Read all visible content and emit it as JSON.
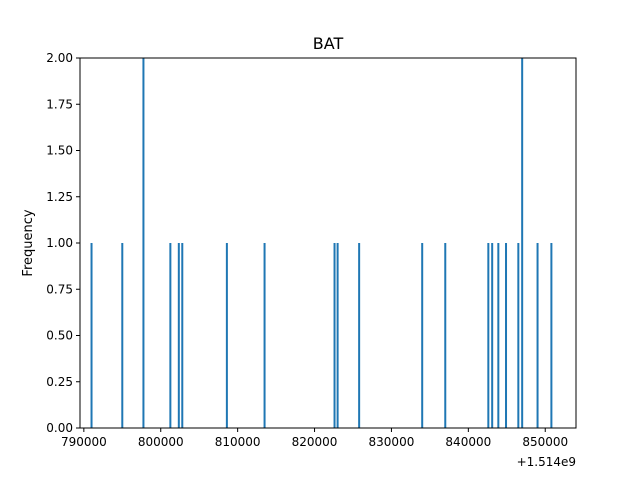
{
  "chart_data": {
    "type": "bar",
    "title": "BAT",
    "xlabel": "",
    "ylabel": "Frequency",
    "x_offset_label": "+1.514e9",
    "xlim": [
      789500,
      854000
    ],
    "ylim": [
      0,
      2.0
    ],
    "x_ticks": [
      790000,
      800000,
      810000,
      820000,
      830000,
      840000,
      850000
    ],
    "y_ticks": [
      0.0,
      0.25,
      0.5,
      0.75,
      1.0,
      1.25,
      1.5,
      1.75,
      2.0
    ],
    "bar_color": "#1f77b4",
    "grid": false,
    "bars": [
      {
        "x": 791000,
        "y": 1
      },
      {
        "x": 795000,
        "y": 1
      },
      {
        "x": 797750,
        "y": 2
      },
      {
        "x": 801250,
        "y": 1
      },
      {
        "x": 802350,
        "y": 1
      },
      {
        "x": 802800,
        "y": 1
      },
      {
        "x": 808600,
        "y": 1
      },
      {
        "x": 813500,
        "y": 1
      },
      {
        "x": 822600,
        "y": 1
      },
      {
        "x": 823000,
        "y": 1
      },
      {
        "x": 825800,
        "y": 1
      },
      {
        "x": 834000,
        "y": 1
      },
      {
        "x": 837000,
        "y": 1
      },
      {
        "x": 842600,
        "y": 1
      },
      {
        "x": 843100,
        "y": 1
      },
      {
        "x": 843900,
        "y": 1
      },
      {
        "x": 844900,
        "y": 1
      },
      {
        "x": 846500,
        "y": 1
      },
      {
        "x": 847000,
        "y": 2
      },
      {
        "x": 849000,
        "y": 1
      },
      {
        "x": 850800,
        "y": 1
      }
    ]
  }
}
